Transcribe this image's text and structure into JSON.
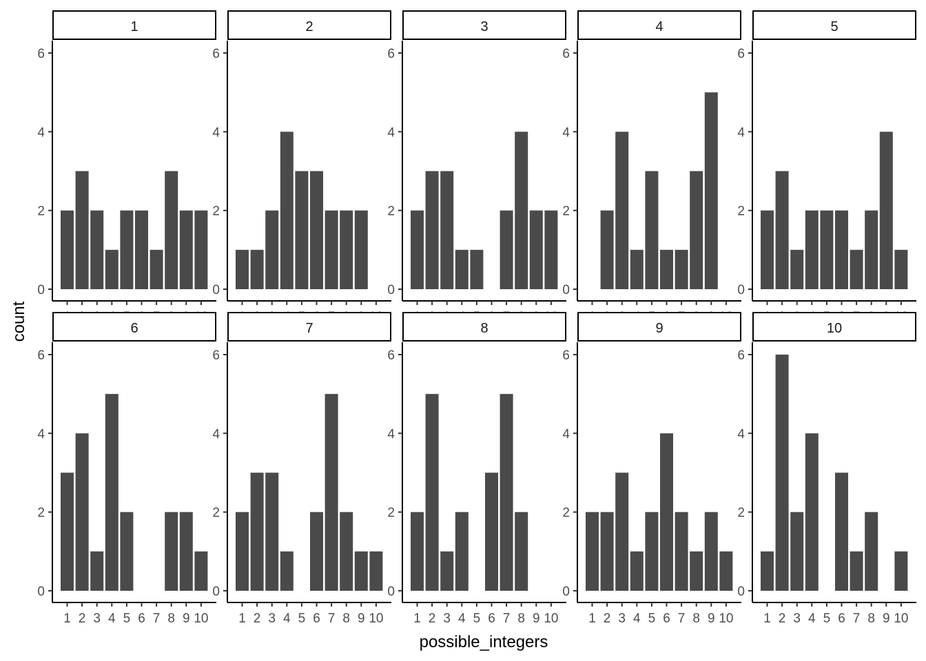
{
  "chart_data": {
    "type": "bar",
    "layout": "facet_wrap",
    "facet_rows": 2,
    "facet_cols": 5,
    "xlabel": "possible_integers",
    "ylabel": "count",
    "ylim": [
      0,
      6
    ],
    "y_ticks": [
      "0",
      "2",
      "4",
      "6"
    ],
    "categories": [
      "1",
      "2",
      "3",
      "4",
      "5",
      "6",
      "7",
      "8",
      "9",
      "10"
    ],
    "bar_color": "#4a4a4a",
    "panels": [
      {
        "label": "1",
        "values": [
          2,
          3,
          2,
          1,
          2,
          2,
          1,
          3,
          2,
          2
        ]
      },
      {
        "label": "2",
        "values": [
          1,
          1,
          2,
          4,
          3,
          3,
          2,
          2,
          2,
          0
        ]
      },
      {
        "label": "3",
        "values": [
          2,
          3,
          3,
          1,
          1,
          0,
          2,
          4,
          2,
          2
        ]
      },
      {
        "label": "4",
        "values": [
          0,
          2,
          4,
          1,
          3,
          1,
          1,
          3,
          5,
          0
        ]
      },
      {
        "label": "5",
        "values": [
          2,
          3,
          1,
          2,
          2,
          2,
          1,
          2,
          4,
          1
        ]
      },
      {
        "label": "6",
        "values": [
          3,
          4,
          1,
          5,
          2,
          0,
          0,
          2,
          2,
          1
        ]
      },
      {
        "label": "7",
        "values": [
          2,
          3,
          3,
          1,
          0,
          2,
          5,
          2,
          1,
          1
        ]
      },
      {
        "label": "8",
        "values": [
          2,
          5,
          1,
          2,
          0,
          3,
          5,
          2,
          0,
          0
        ]
      },
      {
        "label": "9",
        "values": [
          2,
          2,
          3,
          1,
          2,
          4,
          2,
          1,
          2,
          1
        ]
      },
      {
        "label": "10",
        "values": [
          1,
          6,
          2,
          4,
          0,
          3,
          1,
          2,
          0,
          1
        ]
      }
    ]
  }
}
